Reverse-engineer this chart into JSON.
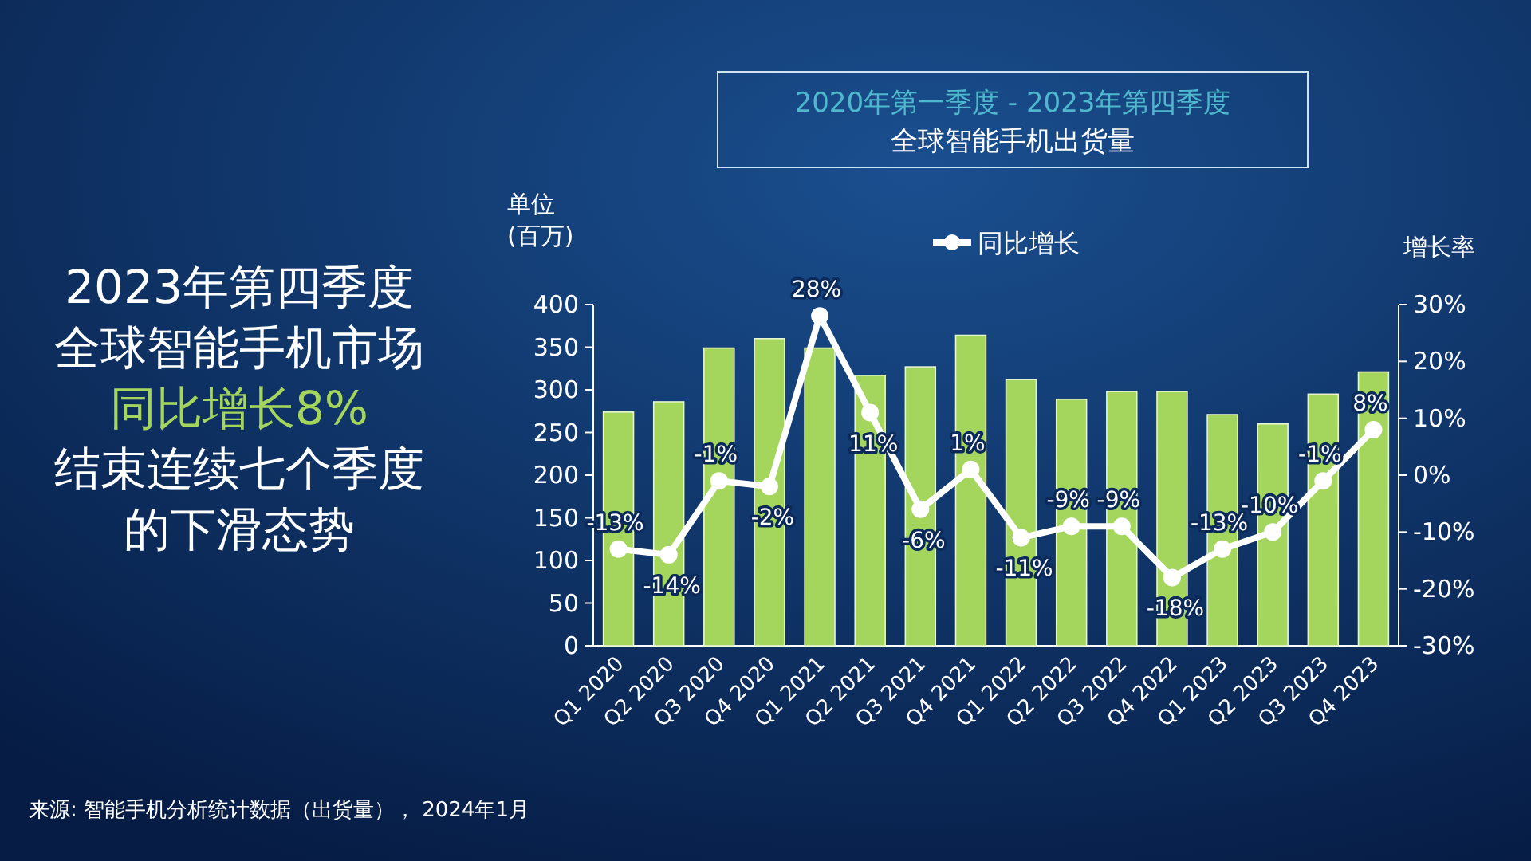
{
  "chart_data": {
    "type": "bar",
    "title": "2020年第一季度  - 2023年第四季度",
    "subtitle": "全球智能手机出货量",
    "categories": [
      "Q1 2020",
      "Q2 2020",
      "Q3 2020",
      "Q4 2020",
      "Q1 2021",
      "Q2 2021",
      "Q3 2021",
      "Q4 2021",
      "Q1 2022",
      "Q2 2022",
      "Q3 2022",
      "Q4 2022",
      "Q1 2023",
      "Q2 2023",
      "Q3 2023",
      "Q4 2023"
    ],
    "series": [
      {
        "color": "#a4d65e",
        "values": [
          274,
          286,
          349,
          360,
          349,
          317,
          327,
          364,
          312,
          289,
          298,
          298,
          271,
          260,
          295,
          321
        ]
      },
      {
        "type": "line",
        "name": "同比增长",
        "axis": "y2",
        "color": "#ffffff",
        "marker": "circle",
        "values": [
          -13,
          -14,
          -1,
          -2,
          28,
          11,
          -6,
          1,
          -11,
          -9,
          -9,
          -18,
          -13,
          -10,
          -1,
          8
        ],
        "value_labels": [
          "-13%",
          "-14%",
          "-1%",
          "-2%",
          "28%",
          "11%",
          "-6%",
          "1%",
          "-11%",
          "-9%",
          "-9%",
          "-18%",
          "-13%",
          "-10%",
          "-1%",
          "8%"
        ]
      }
    ],
    "ylabel": "单位 (百万)",
    "y2label": "增长率",
    "ylim": [
      0,
      400
    ],
    "yticks": [
      0,
      50,
      100,
      150,
      200,
      250,
      300,
      350,
      400
    ],
    "y2lim": [
      -30,
      30
    ],
    "y2ticks": [
      {
        "value": -30,
        "label": "-30%"
      },
      {
        "value": -20,
        "label": "-20%"
      },
      {
        "value": -10,
        "label": "-10%"
      },
      {
        "value": 0,
        "label": "0%"
      },
      {
        "value": 10,
        "label": "10%"
      },
      {
        "value": 20,
        "label": "20%"
      },
      {
        "value": 30,
        "label": "30%"
      }
    ],
    "legend": "top",
    "grid": false,
    "annotations": [
      "2023年第四季度",
      "全球智能手机市场",
      "同比增长8%",
      "结束连续七个季度",
      "的下滑态势",
      "来源: 智能手机分析统计数据（出货量）， 2024年1月"
    ]
  }
}
